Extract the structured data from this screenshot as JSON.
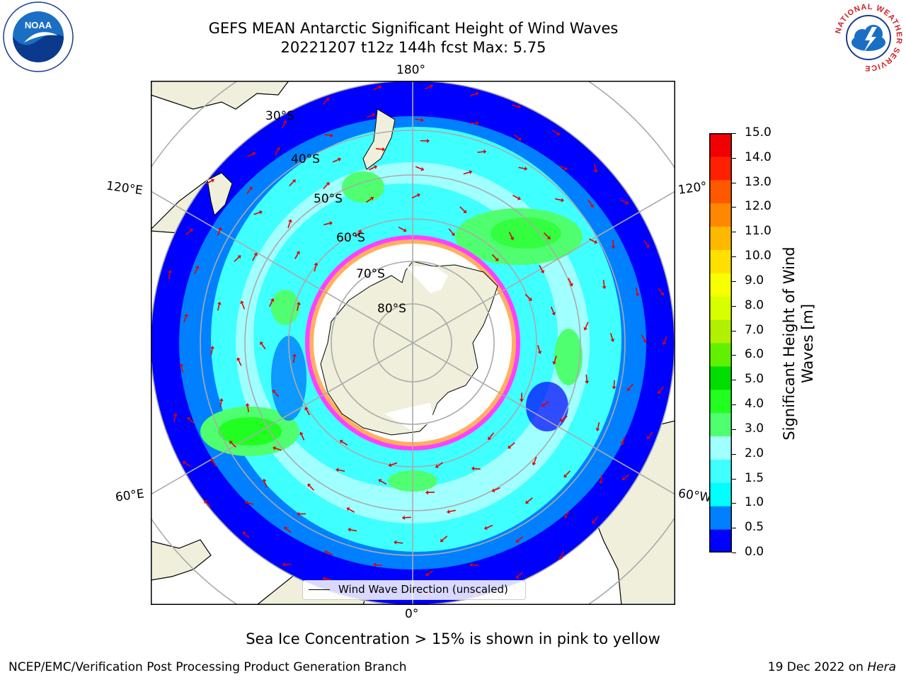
{
  "title_line1": "GEFS MEAN Antarctic Significant Height of Wind Waves",
  "title_line2": "20221207 t12z 144h fcst   Max: 5.75",
  "map": {
    "projection": "south polar stereographic",
    "lon_labels": {
      "top": "180°",
      "bottom": "0°",
      "left_upper": "120°E",
      "left_lower": "60°E",
      "right_upper": "120°",
      "right_lower": "60°W"
    },
    "lat_labels": [
      "30°S",
      "40°S",
      "50°S",
      "60°S",
      "70°S",
      "80°S"
    ],
    "legend": "Wind Wave Direction (unscaled)"
  },
  "colorbar": {
    "title": "Significant Height of Wind Waves [m]",
    "title_line1": "Significant Height of Wind",
    "title_line2": "Waves [m]",
    "ticks": [
      "15.0",
      "14.0",
      "13.0",
      "12.0",
      "11.0",
      "10.0",
      "9.0",
      "8.0",
      "7.0",
      "6.0",
      "5.0",
      "4.0",
      "3.0",
      "2.0",
      "1.5",
      "1.0",
      "0.5",
      "0.0"
    ],
    "colors": [
      "#0000ff",
      "#0080ff",
      "#00ffff",
      "#40ffff",
      "#a0ffff",
      "#50ff70",
      "#20ff20",
      "#00dd00",
      "#60f000",
      "#b0f000",
      "#d8ff00",
      "#f8ff00",
      "#ffe000",
      "#ffb800",
      "#ff8800",
      "#ff5800",
      "#ff2000",
      "#f00000"
    ]
  },
  "subtitle": "Sea Ice Concentration > 15% is shown in pink to yellow",
  "footer_left": "NCEP/EMC/Verification Post Processing Product Generation Branch",
  "footer_right_prefix": "19 Dec 2022 on ",
  "footer_right_host": "Hera",
  "logos": {
    "noaa": "NOAA",
    "nws_ring": "NATIONAL WEATHER SERVICE"
  }
}
